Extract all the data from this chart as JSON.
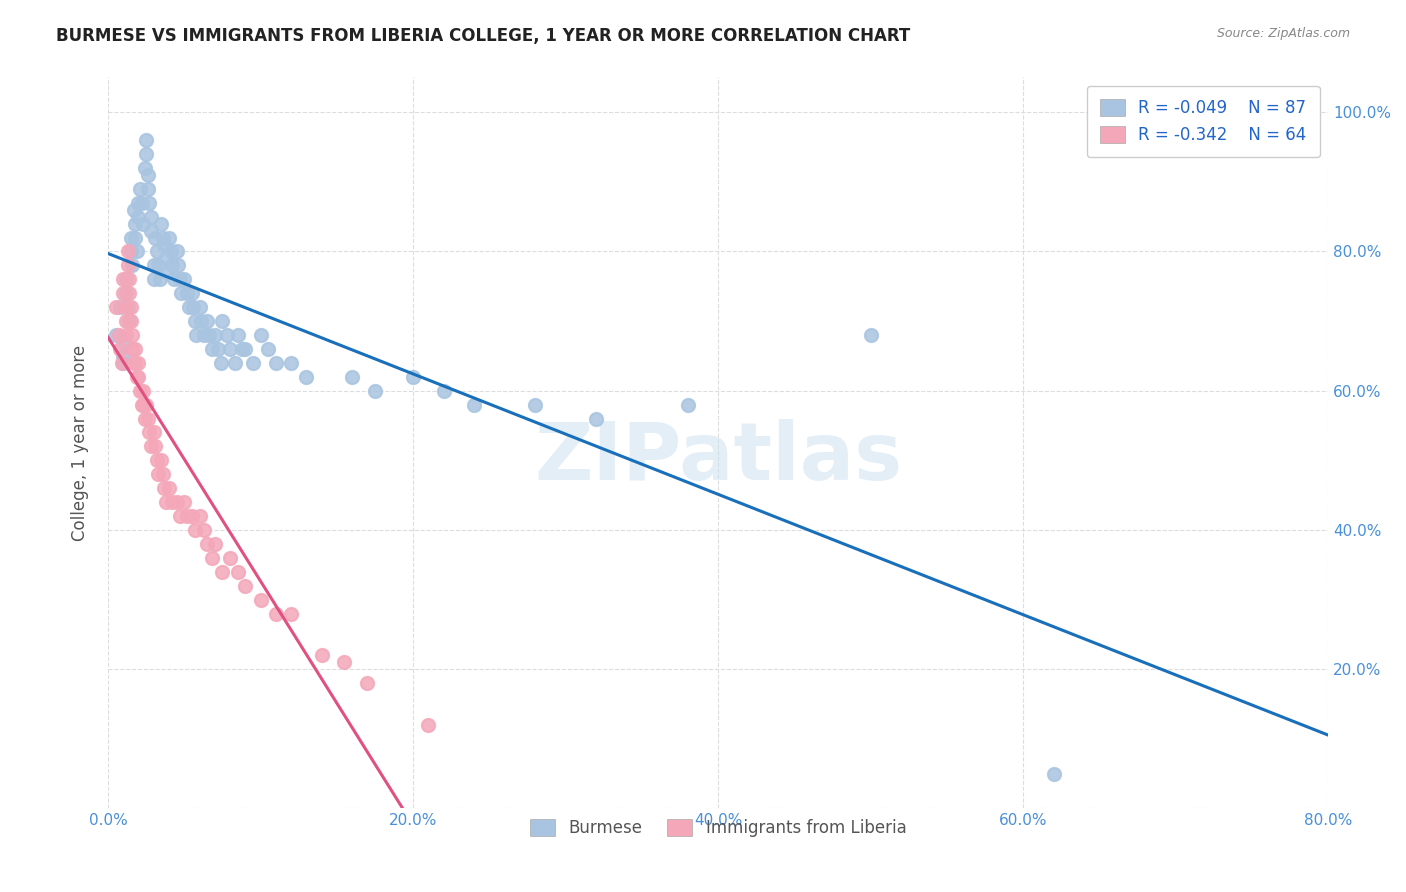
{
  "title": "BURMESE VS IMMIGRANTS FROM LIBERIA COLLEGE, 1 YEAR OR MORE CORRELATION CHART",
  "source": "Source: ZipAtlas.com",
  "ylabel": "College, 1 year or more",
  "watermark": "ZIPatlas",
  "legend_entries": [
    {
      "label": "Burmese",
      "R": -0.049,
      "N": 87,
      "color": "#a8c4e0"
    },
    {
      "label": "Immigrants from Liberia",
      "R": -0.342,
      "N": 64,
      "color": "#f4a7b9"
    }
  ],
  "xlim": [
    0.0,
    0.8
  ],
  "ylim": [
    0.0,
    1.05
  ],
  "xticks": [
    0.0,
    0.2,
    0.4,
    0.6,
    0.8
  ],
  "xtick_labels": [
    "0.0%",
    "20.0%",
    "40.0%",
    "60.0%",
    "80.0%"
  ],
  "yticks": [
    0.0,
    0.2,
    0.4,
    0.6,
    0.8,
    1.0
  ],
  "ytick_labels": [
    "",
    "20.0%",
    "40.0%",
    "60.0%",
    "80.0%",
    "100.0%"
  ],
  "grid_color": "#dddddd",
  "background_color": "#ffffff",
  "scatter_blue_color": "#a8c4e0",
  "scatter_pink_color": "#f4a7b9",
  "line_blue_color": "#1a6fba",
  "line_pink_color": "#e05080",
  "line_gray_color": "#cccccc",
  "burmese_x": [
    0.005,
    0.008,
    0.01,
    0.01,
    0.01,
    0.012,
    0.012,
    0.013,
    0.014,
    0.015,
    0.015,
    0.016,
    0.017,
    0.018,
    0.018,
    0.019,
    0.02,
    0.02,
    0.021,
    0.022,
    0.023,
    0.024,
    0.025,
    0.025,
    0.026,
    0.026,
    0.027,
    0.028,
    0.028,
    0.03,
    0.03,
    0.031,
    0.032,
    0.033,
    0.034,
    0.035,
    0.036,
    0.037,
    0.038,
    0.039,
    0.04,
    0.041,
    0.042,
    0.043,
    0.045,
    0.046,
    0.047,
    0.048,
    0.05,
    0.052,
    0.053,
    0.055,
    0.056,
    0.057,
    0.058,
    0.06,
    0.061,
    0.063,
    0.065,
    0.066,
    0.068,
    0.07,
    0.072,
    0.074,
    0.075,
    0.078,
    0.08,
    0.083,
    0.085,
    0.088,
    0.09,
    0.095,
    0.1,
    0.105,
    0.11,
    0.12,
    0.13,
    0.16,
    0.175,
    0.2,
    0.22,
    0.24,
    0.28,
    0.32,
    0.38,
    0.5,
    0.62
  ],
  "burmese_y": [
    0.68,
    0.72,
    0.67,
    0.65,
    0.64,
    0.76,
    0.74,
    0.72,
    0.7,
    0.82,
    0.8,
    0.78,
    0.86,
    0.84,
    0.82,
    0.8,
    0.87,
    0.85,
    0.89,
    0.87,
    0.84,
    0.92,
    0.96,
    0.94,
    0.91,
    0.89,
    0.87,
    0.85,
    0.83,
    0.78,
    0.76,
    0.82,
    0.8,
    0.78,
    0.76,
    0.84,
    0.82,
    0.81,
    0.79,
    0.77,
    0.82,
    0.8,
    0.78,
    0.76,
    0.8,
    0.78,
    0.76,
    0.74,
    0.76,
    0.74,
    0.72,
    0.74,
    0.72,
    0.7,
    0.68,
    0.72,
    0.7,
    0.68,
    0.7,
    0.68,
    0.66,
    0.68,
    0.66,
    0.64,
    0.7,
    0.68,
    0.66,
    0.64,
    0.68,
    0.66,
    0.66,
    0.64,
    0.68,
    0.66,
    0.64,
    0.64,
    0.62,
    0.62,
    0.6,
    0.62,
    0.6,
    0.58,
    0.58,
    0.56,
    0.58,
    0.68,
    0.05
  ],
  "liberia_x": [
    0.005,
    0.007,
    0.008,
    0.009,
    0.01,
    0.01,
    0.011,
    0.012,
    0.012,
    0.013,
    0.013,
    0.014,
    0.014,
    0.015,
    0.015,
    0.016,
    0.016,
    0.017,
    0.018,
    0.018,
    0.019,
    0.02,
    0.02,
    0.021,
    0.022,
    0.023,
    0.023,
    0.024,
    0.025,
    0.026,
    0.027,
    0.028,
    0.03,
    0.031,
    0.032,
    0.033,
    0.035,
    0.036,
    0.037,
    0.038,
    0.04,
    0.042,
    0.045,
    0.047,
    0.05,
    0.052,
    0.055,
    0.057,
    0.06,
    0.063,
    0.065,
    0.068,
    0.07,
    0.075,
    0.08,
    0.085,
    0.09,
    0.1,
    0.11,
    0.12,
    0.14,
    0.155,
    0.17,
    0.21
  ],
  "liberia_y": [
    0.72,
    0.68,
    0.66,
    0.64,
    0.76,
    0.74,
    0.72,
    0.7,
    0.68,
    0.8,
    0.78,
    0.76,
    0.74,
    0.72,
    0.7,
    0.68,
    0.66,
    0.64,
    0.66,
    0.64,
    0.62,
    0.64,
    0.62,
    0.6,
    0.58,
    0.6,
    0.58,
    0.56,
    0.58,
    0.56,
    0.54,
    0.52,
    0.54,
    0.52,
    0.5,
    0.48,
    0.5,
    0.48,
    0.46,
    0.44,
    0.46,
    0.44,
    0.44,
    0.42,
    0.44,
    0.42,
    0.42,
    0.4,
    0.42,
    0.4,
    0.38,
    0.36,
    0.38,
    0.34,
    0.36,
    0.34,
    0.32,
    0.3,
    0.28,
    0.28,
    0.22,
    0.21,
    0.18,
    0.12
  ]
}
